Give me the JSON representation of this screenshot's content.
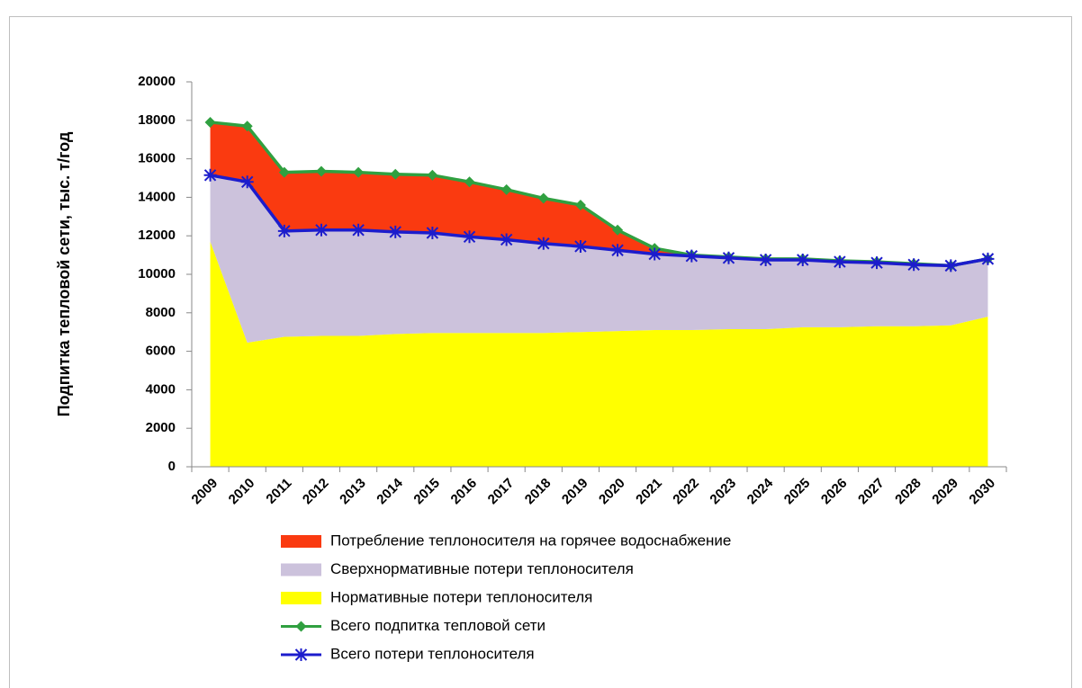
{
  "chart_data": {
    "type": "area",
    "stacked": true,
    "y_label": "Подпитка тепловой сети, тыс. т/год",
    "categories": [
      "2009",
      "2010",
      "2011",
      "2012",
      "2013",
      "2014",
      "2015",
      "2016",
      "2017",
      "2018",
      "2019",
      "2020",
      "2021",
      "2022",
      "2023",
      "2024",
      "2025",
      "2026",
      "2027",
      "2028",
      "2029",
      "2030"
    ],
    "series": [
      {
        "name": "Потребление теплоносителя на горячее водоснабжение",
        "kind": "area",
        "color": "#fa3a10",
        "values": [
          2750,
          2900,
          3050,
          3050,
          3000,
          3000,
          3000,
          2850,
          2600,
          2350,
          2150,
          1050,
          300,
          50,
          50,
          50,
          50,
          50,
          50,
          50,
          0,
          0
        ]
      },
      {
        "name": "Сверхнормативные потери теплоносителя",
        "kind": "area",
        "color": "#ccc2dc",
        "values": [
          3450,
          8350,
          5500,
          5500,
          5500,
          5300,
          5200,
          5000,
          4850,
          4650,
          4450,
          4200,
          3950,
          3850,
          3700,
          3600,
          3500,
          3400,
          3300,
          3200,
          3100,
          3000
        ]
      },
      {
        "name": "Нормативные потери теплоносителя",
        "kind": "area",
        "color": "#ffff00",
        "values": [
          11700,
          6450,
          6750,
          6800,
          6800,
          6900,
          6950,
          6950,
          6950,
          6950,
          7000,
          7050,
          7100,
          7100,
          7150,
          7150,
          7250,
          7250,
          7300,
          7300,
          7350,
          7800
        ]
      },
      {
        "name": "Всего подпитка тепловой сети",
        "kind": "line",
        "marker": "diamond",
        "color": "#30a040",
        "values": [
          17900,
          17700,
          15300,
          15350,
          15300,
          15200,
          15150,
          14800,
          14400,
          13950,
          13600,
          12300,
          11350,
          11000,
          10900,
          10800,
          10800,
          10700,
          10650,
          10550,
          10450,
          10800
        ]
      },
      {
        "name": "Всего потери теплоносителя",
        "kind": "line",
        "marker": "asterisk",
        "color": "#1c1ccc",
        "values": [
          15150,
          14800,
          12250,
          12300,
          12300,
          12200,
          12150,
          11950,
          11800,
          11600,
          11450,
          11250,
          11050,
          10950,
          10850,
          10750,
          10750,
          10650,
          10600,
          10500,
          10450,
          10800
        ]
      }
    ],
    "ylim": [
      0,
      20000
    ],
    "yticks": [
      0,
      2000,
      4000,
      6000,
      8000,
      10000,
      12000,
      14000,
      16000,
      18000,
      20000
    ],
    "grid": false
  }
}
